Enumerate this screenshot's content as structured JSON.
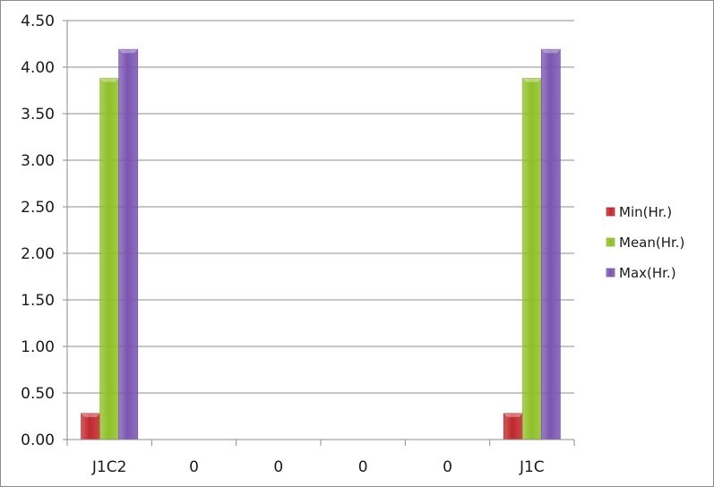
{
  "chart_data": {
    "type": "bar",
    "title": "",
    "xlabel": "",
    "ylabel": "",
    "categories": [
      "J1C2",
      "0",
      "0",
      "0",
      "0",
      "J1C"
    ],
    "series": [
      {
        "name": "Min(Hr.)",
        "color": "#c0282c",
        "values": [
          0.28,
          0,
          0,
          0,
          0,
          0.28
        ]
      },
      {
        "name": "Mean(Hr.)",
        "color": "#8fc028",
        "values": [
          3.88,
          0,
          0,
          0,
          0,
          3.88
        ]
      },
      {
        "name": "Max(Hr.)",
        "color": "#7a56b0",
        "values": [
          4.19,
          0,
          0,
          0,
          0,
          4.19
        ]
      }
    ],
    "ylim": [
      0,
      4.5
    ],
    "yticks": [
      "0.00",
      "0.50",
      "1.00",
      "1.50",
      "2.00",
      "2.50",
      "3.00",
      "3.50",
      "4.00",
      "4.50"
    ],
    "grid": true,
    "legend_position": "right"
  }
}
